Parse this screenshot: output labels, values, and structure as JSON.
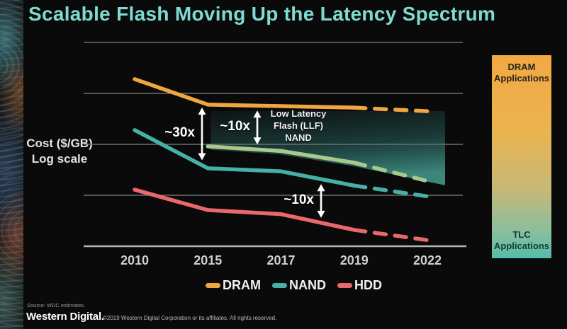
{
  "title": {
    "text": "Scalable Flash Moving Up the Latency Spectrum",
    "color": "#7edbd3"
  },
  "chart_data": {
    "type": "line",
    "x_categories": [
      "2010",
      "2015",
      "2017",
      "2019",
      "2022"
    ],
    "ylabel": "Cost ($/GB) Log scale",
    "ylabel_display": "Cost ($/GB)\nLog scale",
    "y_axis": {
      "scale": "log",
      "tick_labels_shown": false,
      "gridline_levels": [
        0,
        1,
        2,
        3,
        4
      ],
      "unit": "relative log10 decades (no numeric ticks shown on slide)"
    },
    "series": [
      {
        "name": "DRAM",
        "color": "#efa63f",
        "values": [
          3.28,
          2.78,
          2.75,
          2.72,
          2.65
        ],
        "dashed_from": "2019"
      },
      {
        "name": "LLF NAND",
        "color": "#a7c98c",
        "values": [
          null,
          1.96,
          1.87,
          1.64,
          1.28
        ],
        "dashed_from": "2019",
        "label": "Low Latency\nFlash (LLF)\nNAND"
      },
      {
        "name": "NAND",
        "color": "#45b0a6",
        "values": [
          2.28,
          1.53,
          1.47,
          1.19,
          0.98
        ],
        "dashed_from": "2019"
      },
      {
        "name": "HDD",
        "color": "#e8686d",
        "values": [
          1.11,
          0.71,
          0.63,
          0.32,
          0.12
        ],
        "dashed_from": "2019"
      }
    ],
    "annotations": [
      {
        "label": "~30x",
        "x": 285,
        "between": [
          "DRAM",
          "NAND"
        ]
      },
      {
        "label": "~10x",
        "x": 363,
        "between": [
          "DRAM",
          "LLF NAND"
        ]
      },
      {
        "label": "~10x",
        "x": 453,
        "between": [
          "NAND",
          "HDD"
        ]
      }
    ],
    "legend": [
      {
        "label": "DRAM"
      },
      {
        "label": "NAND"
      },
      {
        "label": "HDD"
      }
    ],
    "region_note": "teal gradient highlight between DRAM line and LLF NAND line from 2015 onward",
    "legend_position": "bottom"
  },
  "applications_bar": {
    "top_label": "DRAM\nApplications",
    "bottom_label": "TLC\nApplications",
    "top_color": "#f2a843",
    "bottom_color": "#55bcab"
  },
  "footer": {
    "source": "Source: WDC estimates.",
    "logo": "Western Digital.",
    "copyright": "©2019 Western Digital Corporation or its affiliates. All rights reserved."
  }
}
